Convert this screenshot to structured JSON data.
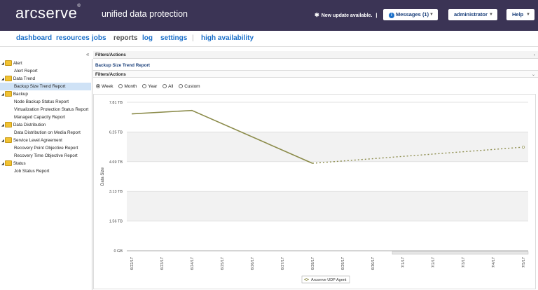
{
  "header": {
    "logo": "arcserve",
    "logo_mark": "®",
    "subtitle": "unified data protection",
    "update_text": "New update available.",
    "update_sep": "|",
    "messages_label": "Messages (1)",
    "user_label": "administrator",
    "help_label": "Help",
    "colors": {
      "header_bg": "#3b3455",
      "accent": "#1a6fc9"
    }
  },
  "nav": {
    "items": [
      "dashboard",
      "resources",
      "jobs",
      "reports",
      "log",
      "settings",
      "high availability"
    ],
    "separator": "|",
    "active": "reports"
  },
  "tree": {
    "collapse_glyph": "«",
    "items": [
      {
        "label": "Alert",
        "level": 0
      },
      {
        "label": "Alert Report",
        "level": 1
      },
      {
        "label": "Data Trend",
        "level": 0
      },
      {
        "label": "Backup Size Trend Report",
        "level": 1,
        "selected": true
      },
      {
        "label": "Backup",
        "level": 0
      },
      {
        "label": "Node Backup Status Report",
        "level": 1
      },
      {
        "label": "Virtualization Protection Status Report",
        "level": 1
      },
      {
        "label": "Managed Capacity Report",
        "level": 1
      },
      {
        "label": "Data Distribution",
        "level": 0
      },
      {
        "label": "Data Distribution on Media Report",
        "level": 1
      },
      {
        "label": "Service Level Agreement",
        "level": 0
      },
      {
        "label": "Recovery Point Objective Report",
        "level": 1
      },
      {
        "label": "Recovery Time Objective Report",
        "level": 1
      },
      {
        "label": "Status",
        "level": 0
      },
      {
        "label": "Job Status Report",
        "level": 1
      }
    ]
  },
  "main": {
    "filters_title": "Filters/Actions",
    "report_title": "Backup Size Trend Report",
    "filters_title2": "Filters/Actions",
    "period_options": [
      "Week",
      "Month",
      "Year",
      "All",
      "Custom"
    ],
    "selected_period": "Week"
  },
  "chart_data": {
    "type": "line",
    "ylabel": "Data Size",
    "y_ticks": [
      "0 GB",
      "1.56 TB",
      "3.13 TB",
      "4.69 TB",
      "6.25 TB",
      "7.81 TB"
    ],
    "ylim": [
      0,
      7.81
    ],
    "x": [
      "6/22/17",
      "6/23/17",
      "6/24/17",
      "6/25/17",
      "6/26/17",
      "6/27/17",
      "6/28/17",
      "6/29/17",
      "6/30/17",
      "7/1/17",
      "7/2/17",
      "7/3/17",
      "7/4/17",
      "7/5/17"
    ],
    "series": [
      {
        "name": "Arcserve UDP Agent",
        "actual": [
          [
            0,
            7.2
          ],
          [
            2,
            7.38
          ],
          [
            6,
            4.6
          ]
        ],
        "forecast": [
          [
            6,
            4.6
          ],
          [
            13,
            5.45
          ]
        ],
        "color": "#8b8b4a"
      }
    ],
    "legend_position": "bottom"
  }
}
